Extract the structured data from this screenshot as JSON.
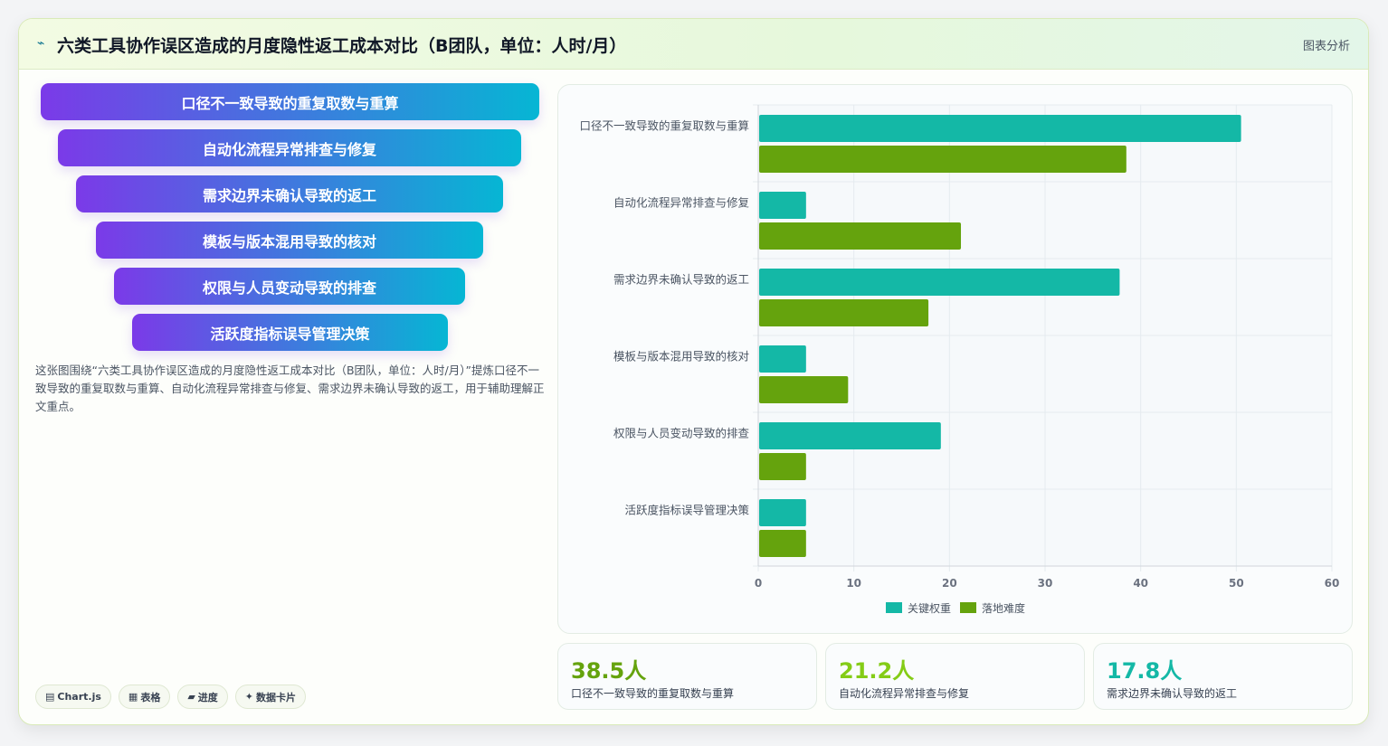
{
  "header": {
    "logo_icon": "wave-icon",
    "logo_glyph": "⌁",
    "title": "六类工具协作误区造成的月度隐性返工成本对比（B团队，单位：人时/月）",
    "link": "图表分析"
  },
  "funnel": [
    {
      "label": "口径不一致导致的重复取数与重算"
    },
    {
      "label": "自动化流程异常排查与修复"
    },
    {
      "label": "需求边界未确认导致的返工"
    },
    {
      "label": "模板与版本混用导致的核对"
    },
    {
      "label": "权限与人员变动导致的排查"
    },
    {
      "label": "活跃度指标误导管理决策"
    }
  ],
  "description": "这张图围绕“六类工具协作误区造成的月度隐性返工成本对比（B团队，单位：人时/月）”提炼口径不一致导致的重复取数与重算、自动化流程异常排查与修复、需求边界未确认导致的返工，用于辅助理解正文重点。",
  "chips": [
    {
      "icon": "chart-icon",
      "glyph": "▤",
      "label": "Chart.js"
    },
    {
      "icon": "table-icon",
      "glyph": "▦",
      "label": "表格"
    },
    {
      "icon": "progress-icon",
      "glyph": "▰",
      "label": "进度"
    },
    {
      "icon": "sparkle-icon",
      "glyph": "✦",
      "label": "数据卡片"
    }
  ],
  "chart_data": {
    "type": "bar",
    "orientation": "horizontal",
    "categories": [
      "口径不一致导致的重复取数与重算",
      "自动化流程异常排查与修复",
      "需求边界未确认导致的返工",
      "模板与版本混用导致的核对",
      "权限与人员变动导致的排查",
      "活跃度指标误导管理决策"
    ],
    "series": [
      {
        "name": "关键权重",
        "color": "#14b8a6",
        "values": [
          50.5,
          5,
          37.8,
          5,
          19.1,
          5
        ]
      },
      {
        "name": "落地难度",
        "color": "#65a30d",
        "values": [
          38.5,
          21.2,
          17.8,
          9.4,
          5,
          5
        ]
      }
    ],
    "xlim": [
      0,
      60
    ],
    "xticks": [
      "0",
      "10",
      "20",
      "30",
      "40",
      "50",
      "60"
    ],
    "grid": true,
    "legend": "bottom"
  },
  "stats": [
    {
      "value": "38.5人",
      "label": "口径不一致导致的重复取数与重算",
      "color": "#65a30d"
    },
    {
      "value": "21.2人",
      "label": "自动化流程异常排查与修复",
      "color": "#84cc16"
    },
    {
      "value": "17.8人",
      "label": "需求边界未确认导致的返工",
      "color": "#14b8a6"
    }
  ]
}
